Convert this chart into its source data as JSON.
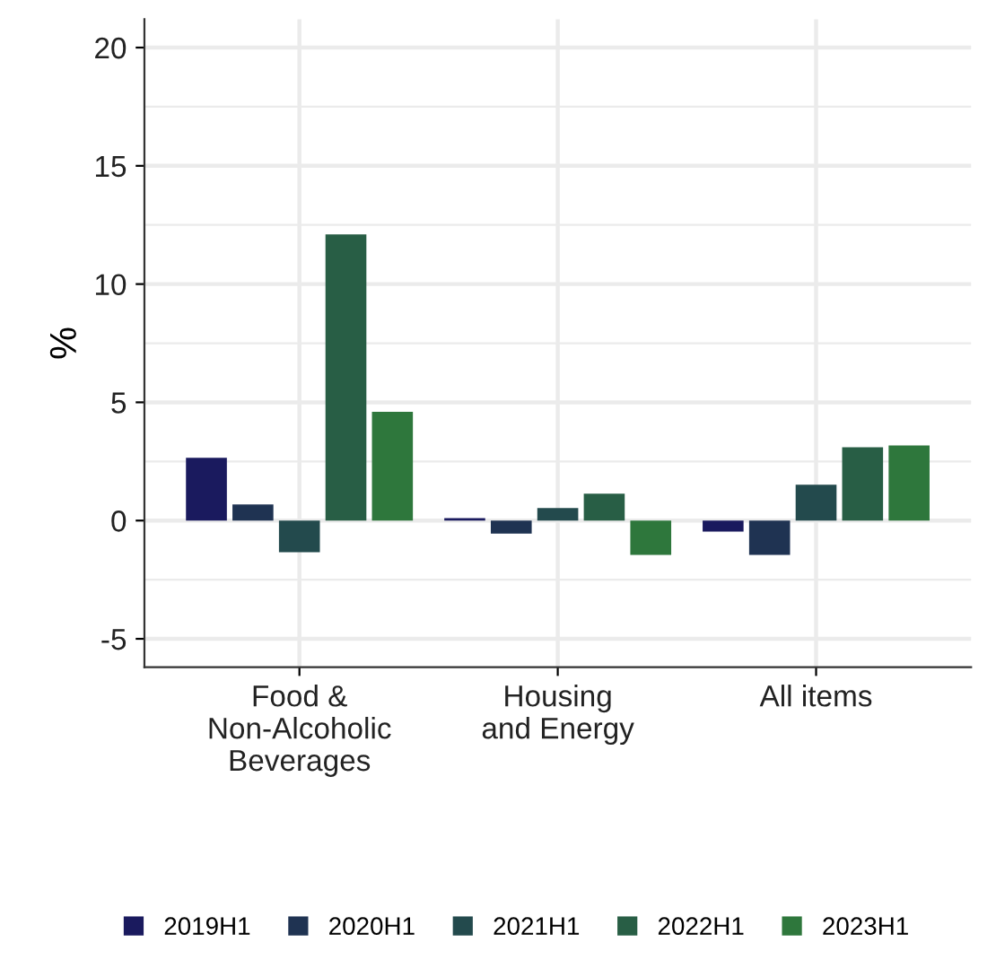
{
  "chart_data": {
    "type": "bar",
    "ylabel": "%",
    "categories": [
      "Food &\nNon-Alcoholic\nBeverages",
      "Housing\nand Energy",
      "All items"
    ],
    "series": [
      {
        "name": "2019H1",
        "color": "#1a1a5e",
        "values": [
          2.65,
          0.1,
          -0.47
        ]
      },
      {
        "name": "2020H1",
        "color": "#1f3352",
        "values": [
          0.68,
          -0.55,
          -1.45
        ]
      },
      {
        "name": "2021H1",
        "color": "#234a4d",
        "values": [
          -1.34,
          0.53,
          1.52
        ]
      },
      {
        "name": "2022H1",
        "color": "#285e45",
        "values": [
          12.1,
          1.14,
          3.1
        ]
      },
      {
        "name": "2023H1",
        "color": "#2e773c",
        "values": [
          4.6,
          -1.45,
          3.18
        ]
      }
    ],
    "ylim": [
      -6.2,
      21.2
    ],
    "yticks": [
      {
        "value": -5,
        "label": "-5"
      },
      0,
      5,
      10,
      15,
      20
    ],
    "grid": true,
    "legend": "bottom"
  }
}
